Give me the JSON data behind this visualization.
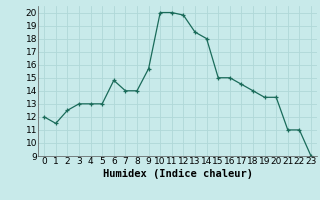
{
  "x": [
    0,
    1,
    2,
    3,
    4,
    5,
    6,
    7,
    8,
    9,
    10,
    11,
    12,
    13,
    14,
    15,
    16,
    17,
    18,
    19,
    20,
    21,
    22,
    23
  ],
  "y": [
    12,
    11.5,
    12.5,
    13,
    13,
    13,
    14.8,
    14,
    14,
    15.7,
    20,
    20,
    19.8,
    18.5,
    18,
    15,
    15,
    14.5,
    14,
    13.5,
    13.5,
    11,
    11,
    9
  ],
  "line_color": "#1a6b5a",
  "marker_color": "#1a6b5a",
  "bg_color": "#c8eaea",
  "grid_color": "#b0d8d8",
  "xlabel": "Humidex (Indice chaleur)",
  "ylim": [
    9,
    20.5
  ],
  "xlim": [
    -0.5,
    23.5
  ],
  "yticks": [
    9,
    10,
    11,
    12,
    13,
    14,
    15,
    16,
    17,
    18,
    19,
    20
  ],
  "xticks": [
    0,
    1,
    2,
    3,
    4,
    5,
    6,
    7,
    8,
    9,
    10,
    11,
    12,
    13,
    14,
    15,
    16,
    17,
    18,
    19,
    20,
    21,
    22,
    23
  ],
  "font_size": 6.5,
  "xlabel_fontsize": 7.5
}
